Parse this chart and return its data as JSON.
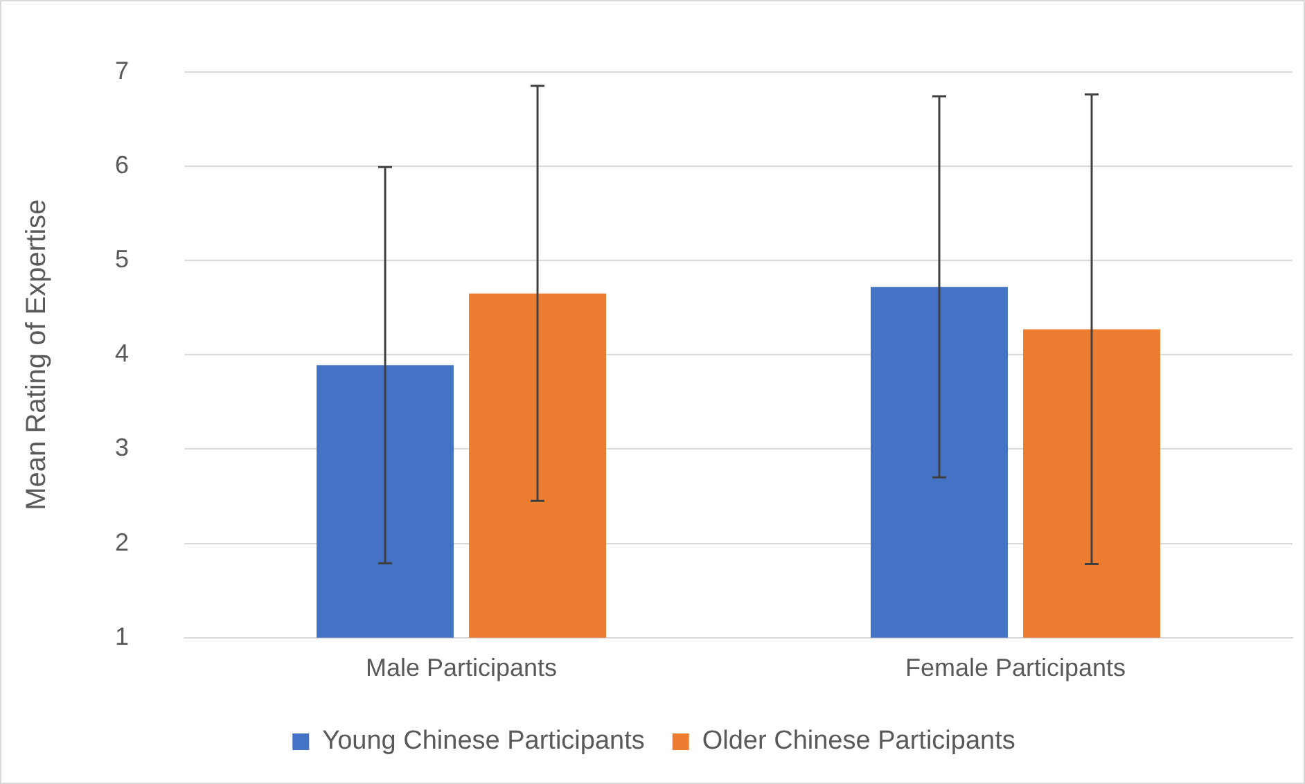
{
  "chart_data": {
    "type": "bar",
    "ylabel": "Mean Rating of Expertise",
    "categories": [
      "Male Participants",
      "Female Participants"
    ],
    "series": [
      {
        "name": "Young Chinese Participants",
        "color": "#4472c4",
        "values": [
          3.89,
          4.72
        ],
        "errors": [
          [
            1.79,
            5.99
          ],
          [
            2.7,
            6.74
          ]
        ]
      },
      {
        "name": "Older Chinese Participants",
        "color": "#ed7d31",
        "values": [
          4.65,
          4.27
        ],
        "errors": [
          [
            2.45,
            6.85
          ],
          [
            1.78,
            6.76
          ]
        ]
      }
    ],
    "ylim": [
      1,
      7
    ],
    "yticks": [
      1,
      2,
      3,
      4,
      5,
      6,
      7
    ],
    "grid": "y",
    "legend": "bottom"
  }
}
